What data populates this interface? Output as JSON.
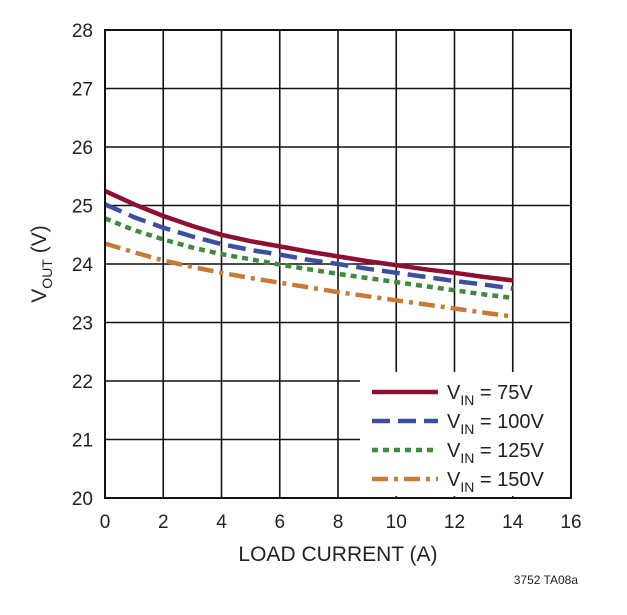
{
  "chart_data": {
    "type": "line",
    "xlabel": "LOAD CURRENT (A)",
    "ylabel": {
      "main": "V",
      "sub": "OUT",
      "unit": " (V)"
    },
    "xlim": [
      0,
      16
    ],
    "ylim": [
      20,
      28
    ],
    "xticks": [
      "0",
      "2",
      "4",
      "6",
      "8",
      "10",
      "12",
      "14",
      "16"
    ],
    "yticks": [
      "20",
      "21",
      "22",
      "23",
      "24",
      "25",
      "26",
      "27",
      "28"
    ],
    "grid": true,
    "legend_position": "bottom-right",
    "x": [
      0,
      1,
      2,
      3,
      4,
      5,
      6,
      7,
      8,
      9,
      10,
      11,
      12,
      13,
      14
    ],
    "series": [
      {
        "label_main": "V",
        "label_sub": "IN",
        "label_rest": " = 75V",
        "color": "#8e0f2f",
        "style": "solid",
        "values": [
          25.25,
          25.02,
          24.82,
          24.65,
          24.5,
          24.39,
          24.3,
          24.21,
          24.13,
          24.05,
          23.98,
          23.91,
          23.85,
          23.78,
          23.72
        ]
      },
      {
        "label_main": "V",
        "label_sub": "IN",
        "label_rest": " = 100V",
        "color": "#3b50a0",
        "style": "dashed",
        "values": [
          25.02,
          24.8,
          24.62,
          24.47,
          24.34,
          24.24,
          24.16,
          24.07,
          24.0,
          23.92,
          23.85,
          23.78,
          23.71,
          23.65,
          23.58
        ]
      },
      {
        "label_main": "V",
        "label_sub": "IN",
        "label_rest": " = 125V",
        "color": "#3f8a3f",
        "style": "dotted",
        "values": [
          24.78,
          24.58,
          24.42,
          24.28,
          24.17,
          24.08,
          23.99,
          23.91,
          23.83,
          23.76,
          23.69,
          23.62,
          23.55,
          23.48,
          23.42
        ]
      },
      {
        "label_main": "V",
        "label_sub": "IN",
        "label_rest": " = 150V",
        "color": "#c77a35",
        "style": "dashdot",
        "values": [
          24.35,
          24.2,
          24.06,
          23.95,
          23.85,
          23.76,
          23.68,
          23.6,
          23.52,
          23.45,
          23.38,
          23.31,
          23.24,
          23.17,
          23.1
        ]
      }
    ],
    "footnote": "3752 TA08a"
  }
}
